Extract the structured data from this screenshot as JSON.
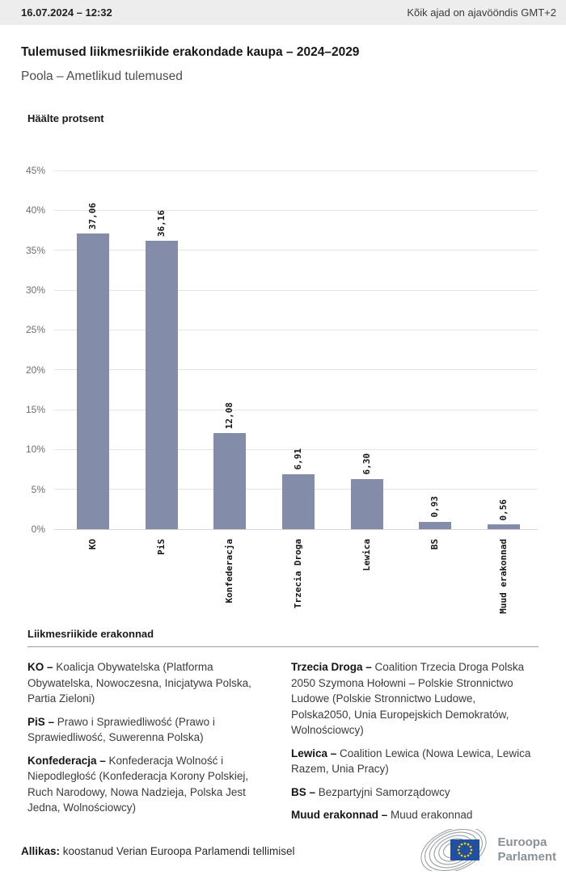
{
  "header": {
    "datetime": "16.07.2024 – 12:32",
    "timezone_note": "Kõik ajad on ajavööndis GMT+2"
  },
  "title": "Tulemused liikmesriikide erakondade kaupa – 2024–2029",
  "subtitle": "Poola – Ametlikud tulemused",
  "chart_data": {
    "type": "bar",
    "title": "Häälte protsent",
    "categories": [
      "KO",
      "PiS",
      "Konfederacja",
      "Trzecia Droga",
      "Lewica",
      "BS",
      "Muud erakonnad"
    ],
    "values": [
      37.06,
      36.16,
      12.08,
      6.91,
      6.3,
      0.93,
      0.56
    ],
    "value_labels": [
      "37,06",
      "36,16",
      "12,08",
      "6,91",
      "6,30",
      "0,93",
      "0,56"
    ],
    "ylabel": "Häälte protsent",
    "xlabel": "",
    "ylim": [
      0,
      45
    ],
    "ytick_step": 5,
    "ytick_suffix": "%",
    "grid": true,
    "legend_position": "none",
    "bar_color": "#838da9"
  },
  "legend": {
    "heading": "Liikmesriikide erakonnad",
    "columns": [
      [
        {
          "name": "KO –",
          "desc": "Koalicja Obywatelska (Platforma Obywatelska, Nowoczesna, Inicjatywa Polska, Partia Zieloni)"
        },
        {
          "name": "PiS –",
          "desc": "Prawo i Sprawiedliwość (Prawo i Sprawiedliwość, Suwerenna Polska)"
        },
        {
          "name": "Konfederacja –",
          "desc": "Konfederacja Wolność i Niepodległość (Konfederacja Korony Polskiej, Ruch Narodowy, Nowa Nadzieja, Polska Jest Jedna, Wolnościowcy)"
        }
      ],
      [
        {
          "name": "Trzecia Droga –",
          "desc": "Coalition Trzecia Droga Polska 2050 Szymona Hołowni – Polskie Stronnictwo Ludowe (Polskie Stronnictwo Ludowe, Polska2050, Unia Europejskich Demokratów, Wolnościowcy)"
        },
        {
          "name": "Lewica –",
          "desc": "Coalition Lewica (Nowa Lewica, Lewica Razem, Unia Pracy)"
        },
        {
          "name": "BS –",
          "desc": "Bezpartyjni Samorządowcy"
        },
        {
          "name": "Muud erakonnad –",
          "desc": "Muud erakonnad"
        }
      ]
    ]
  },
  "footer": {
    "source_label": "Allikas:",
    "source_text": " koostanud Verian Euroopa Parlamendi tellimisel",
    "logo_line1": "Euroopa",
    "logo_line2": "Parlament"
  },
  "colors": {
    "bar": "#838da9",
    "topbar_bg": "#ededed",
    "eu_flag_blue": "#2050a0",
    "eu_star_yellow": "#ffcc00",
    "logo_gray": "#9aa0a6"
  }
}
